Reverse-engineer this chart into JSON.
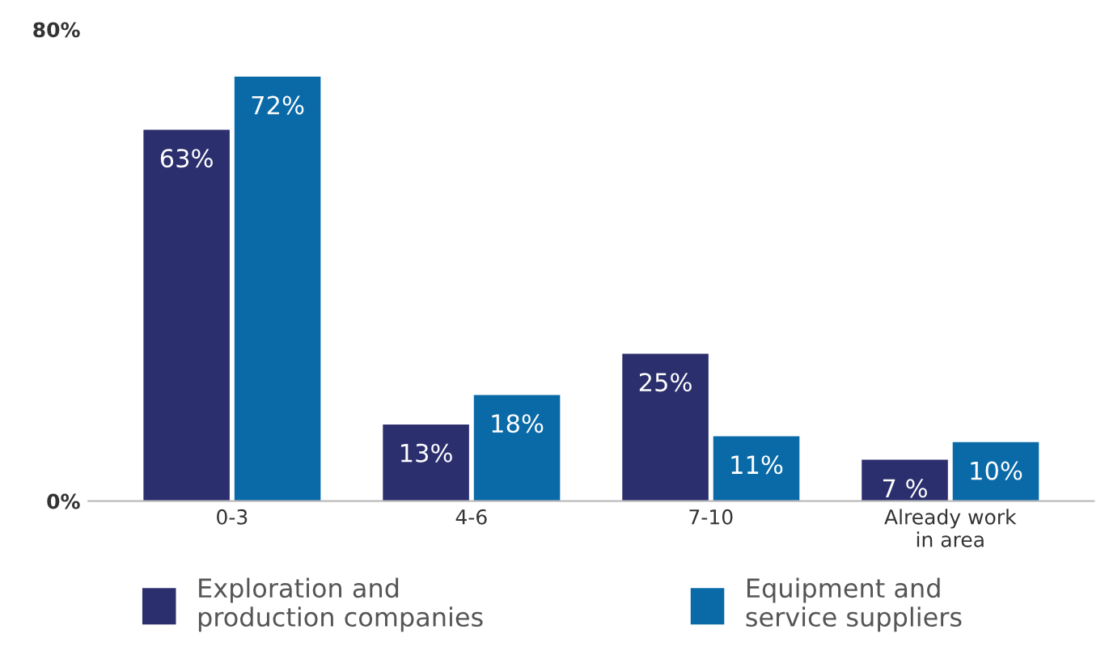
{
  "chart_data": {
    "type": "bar",
    "categories": [
      "0-3",
      "4-6",
      "7-10",
      "Already work\nin area"
    ],
    "series": [
      {
        "name": "Exploration and\nproduction companies",
        "color": "#2b2f6e",
        "values": [
          63,
          13,
          25,
          7
        ],
        "value_labels": [
          "63%",
          "13%",
          "25%",
          "7 %"
        ]
      },
      {
        "name": "Equipment and\nservice suppliers",
        "color": "#0a6aa8",
        "values": [
          72,
          18,
          11,
          10
        ],
        "value_labels": [
          "72%",
          "18%",
          "11%",
          "10%"
        ]
      }
    ],
    "ylim": [
      0,
      80
    ],
    "yticks": [
      {
        "value": 0,
        "label": "0%"
      },
      {
        "value": 80,
        "label": "80%"
      }
    ],
    "grid": false,
    "legend": "bottom"
  }
}
